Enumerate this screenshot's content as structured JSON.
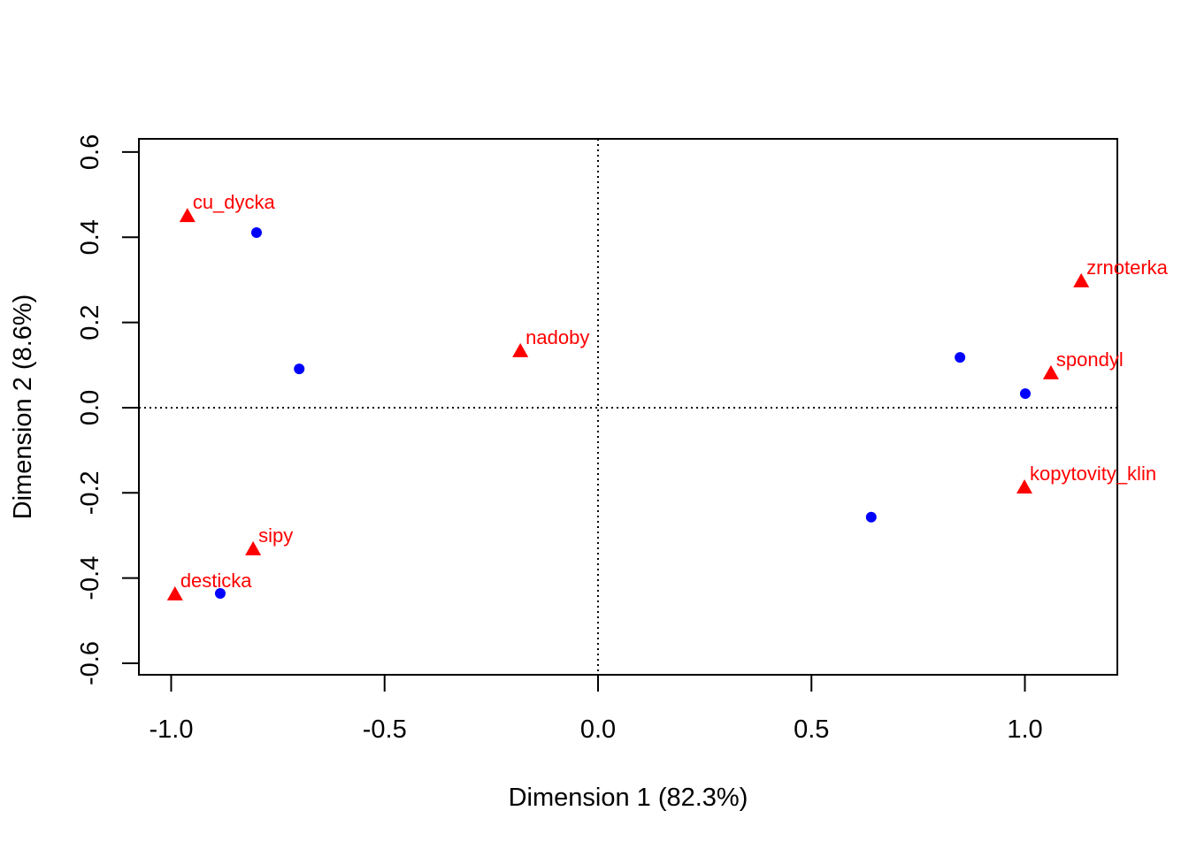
{
  "chart_data": {
    "type": "scatter",
    "title": "",
    "xlabel": "Dimension 1 (82.3%)",
    "ylabel": "Dimension 2 (8.6%)",
    "xlim": [
      -1.0756,
      1.2166
    ],
    "ylim": [
      -0.627,
      0.631
    ],
    "xticks": [
      -1.0,
      -0.5,
      0.0,
      0.5,
      1.0
    ],
    "xtick_labels": [
      "-1.0",
      "-0.5",
      "0.0",
      "0.5",
      "1.0"
    ],
    "yticks": [
      -0.6,
      -0.4,
      -0.2,
      0.0,
      0.2,
      0.4,
      0.6
    ],
    "ytick_labels": [
      "-0.6",
      "-0.4",
      "-0.2",
      "0.0",
      "0.2",
      "0.4",
      "0.6"
    ],
    "grid": false,
    "reference_lines": {
      "x": 0,
      "y": 0,
      "style": "dotted"
    },
    "series": [
      {
        "name": "rows",
        "marker": "circle",
        "color": "#0000ff",
        "points": [
          {
            "x": -0.8,
            "y": 0.411
          },
          {
            "x": -0.7,
            "y": 0.091
          },
          {
            "x": -0.885,
            "y": -0.436
          },
          {
            "x": 0.64,
            "y": -0.257
          },
          {
            "x": 0.848,
            "y": 0.118
          },
          {
            "x": 1.001,
            "y": 0.033
          }
        ]
      },
      {
        "name": "columns",
        "marker": "triangle",
        "color": "#ff0000",
        "points": [
          {
            "label": "cu_dycka",
            "x": -0.962,
            "y": 0.448
          },
          {
            "label": "nadoby",
            "x": -0.182,
            "y": 0.131
          },
          {
            "label": "zrnoterka",
            "x": 1.132,
            "y": 0.295
          },
          {
            "label": "spondyl",
            "x": 1.061,
            "y": 0.079
          },
          {
            "label": "kopytovity_klin",
            "x": 0.999,
            "y": -0.189
          },
          {
            "label": "sipy",
            "x": -0.808,
            "y": -0.334
          },
          {
            "label": "desticka",
            "x": -0.991,
            "y": -0.44
          }
        ]
      }
    ]
  }
}
